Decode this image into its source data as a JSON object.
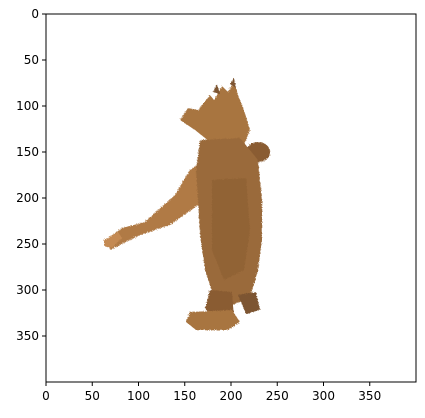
{
  "figure": {
    "x_ticks": [
      "0",
      "50",
      "100",
      "150",
      "200",
      "250",
      "300",
      "350"
    ],
    "y_ticks": [
      "0",
      "50",
      "100",
      "150",
      "200",
      "250",
      "300",
      "350"
    ],
    "xlim": [
      0,
      400
    ],
    "ylim": [
      400,
      0
    ],
    "subject": "brown plush creature figurine, seen from the side with arm outstretched",
    "colors": {
      "fur_main": "#a8743f",
      "fur_light": "#c48a52",
      "fur_dark": "#7d5530",
      "background": "#ffffff",
      "axis": "#000000"
    }
  }
}
